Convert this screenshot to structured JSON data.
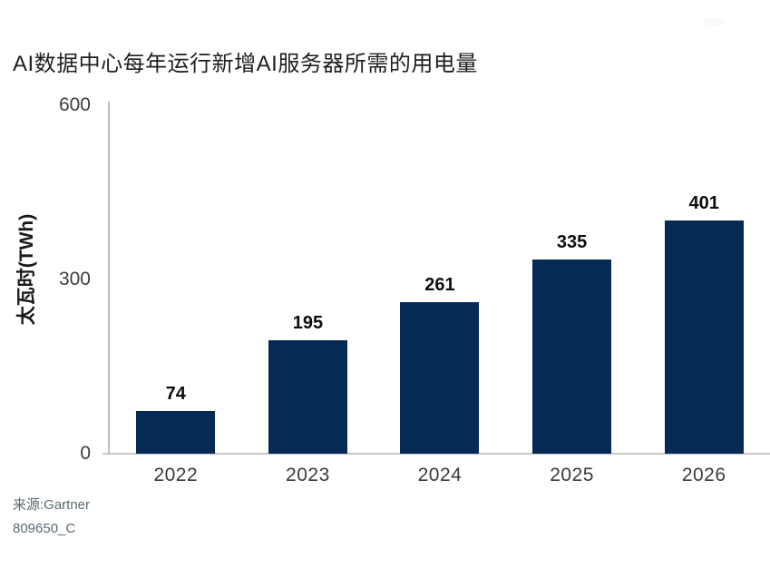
{
  "chart_data": {
    "type": "bar",
    "title": "AI数据中心每年运行新增AI服务器所需的用电量",
    "categories": [
      "2022",
      "2023",
      "2024",
      "2025",
      "2026"
    ],
    "values": [
      74,
      195,
      261,
      335,
      401
    ],
    "xlabel": "",
    "ylabel": "太瓦时(TWh)",
    "ylim": [
      0,
      600
    ],
    "yticks": [
      0,
      300,
      600
    ],
    "grid": false,
    "legend": false,
    "bar_color": "#062a56",
    "axis_color": "#bdbdbd",
    "value_label_color": "#0d0d0d"
  },
  "footer": {
    "source": "来源:Gartner",
    "code": "809650_C"
  }
}
